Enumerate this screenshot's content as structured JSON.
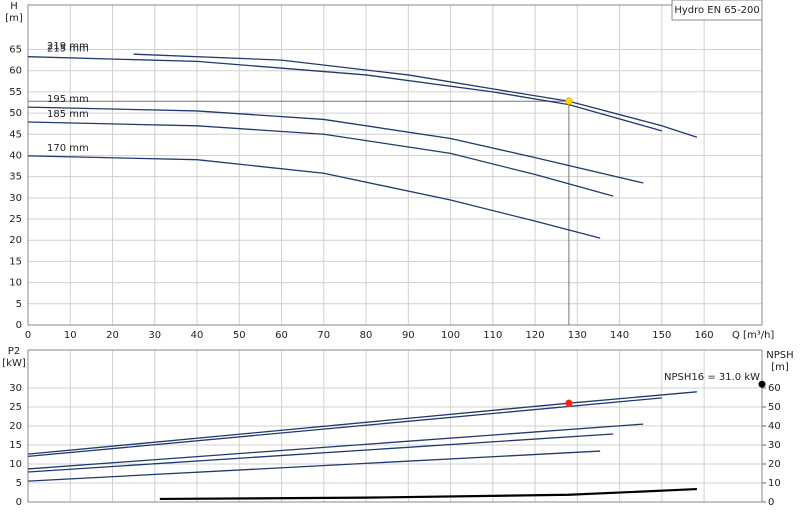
{
  "chart_data": [
    {
      "type": "line",
      "title": "Hydro EN 65-200",
      "ylabel": "H",
      "yunit": "[m]",
      "xlabel": "Q [m³/h]",
      "xlim": [
        0,
        173.7
      ],
      "ylim": [
        0,
        75.5
      ],
      "xticks": [
        0,
        10,
        20,
        30,
        40,
        50,
        60,
        70,
        80,
        90,
        100,
        110,
        120,
        130,
        140,
        150,
        160
      ],
      "yticks": [
        0,
        5,
        10,
        15,
        20,
        25,
        30,
        35,
        40,
        45,
        50,
        55,
        60,
        65
      ],
      "grid": true,
      "series": [
        {
          "name": "219 mm",
          "color": "#1f3a6e",
          "x": [
            25,
            60,
            90,
            110,
            128,
            150,
            158.3
          ],
          "values": [
            63.9,
            62.5,
            59,
            55.7,
            52.8,
            47,
            44.3
          ]
        },
        {
          "name": "215 mm",
          "color": "#1f3a6e",
          "x": [
            0,
            40,
            80,
            110,
            128,
            150
          ],
          "values": [
            63.3,
            62.2,
            59,
            55,
            52,
            45.8
          ]
        },
        {
          "name": "195 mm",
          "color": "#1f3a6e",
          "x": [
            0,
            40,
            70,
            100,
            120,
            145.6
          ],
          "values": [
            51.4,
            50.5,
            48.5,
            44,
            39.5,
            33.5
          ]
        },
        {
          "name": "185 mm",
          "color": "#1f3a6e",
          "x": [
            0,
            40,
            70,
            100,
            120,
            138.5
          ],
          "values": [
            47.9,
            47,
            45,
            40.5,
            35.5,
            30.4
          ]
        },
        {
          "name": "170 mm",
          "color": "#1f3a6e",
          "x": [
            0,
            40,
            70,
            100,
            120,
            135.4
          ],
          "values": [
            39.9,
            39,
            35.8,
            29.5,
            24.5,
            20.5
          ]
        }
      ],
      "point": {
        "x": 128,
        "y": 52.8,
        "color": "#ffd700"
      }
    },
    {
      "type": "line",
      "ylabel": "P2",
      "yunit": "[kW]",
      "y2label": "NPSH",
      "y2unit": "[m]",
      "xlim": [
        0,
        173.7
      ],
      "ylim": [
        0,
        40
      ],
      "y2lim": [
        0,
        80
      ],
      "xticks": [
        0,
        10,
        20,
        30,
        40,
        50,
        60,
        70,
        80,
        90,
        100,
        110,
        120,
        130,
        140,
        150,
        160
      ],
      "yticks": [
        0,
        5,
        10,
        15,
        20,
        25,
        30
      ],
      "y2ticks": [
        0,
        10,
        20,
        30,
        40,
        50,
        60
      ],
      "grid": true,
      "series": [
        {
          "color": "#1f3a6e",
          "x": [
            0,
            128,
            158.3
          ],
          "values": [
            12.6,
            26,
            29
          ]
        },
        {
          "color": "#1f3a6e",
          "x": [
            0,
            150
          ],
          "values": [
            12,
            27.4
          ]
        },
        {
          "color": "#1f3a6e",
          "x": [
            0,
            145.6
          ],
          "values": [
            8.7,
            20.5
          ]
        },
        {
          "color": "#1f3a6e",
          "x": [
            0,
            138.5
          ],
          "values": [
            7.9,
            17.9
          ]
        },
        {
          "color": "#1f3a6e",
          "x": [
            0,
            135.4
          ],
          "values": [
            5.5,
            13.4
          ]
        },
        {
          "color": "#000000",
          "axis": "y2",
          "x": [
            31.2,
            80,
            128,
            158.3
          ],
          "values": [
            1.6,
            2.3,
            3.8,
            6.8
          ]
        }
      ],
      "point": {
        "x": 128,
        "y": 26,
        "color": "#ff2020"
      },
      "annotation": {
        "text": "NPSH16 = 31.0 kW",
        "y": 31.0
      }
    }
  ]
}
